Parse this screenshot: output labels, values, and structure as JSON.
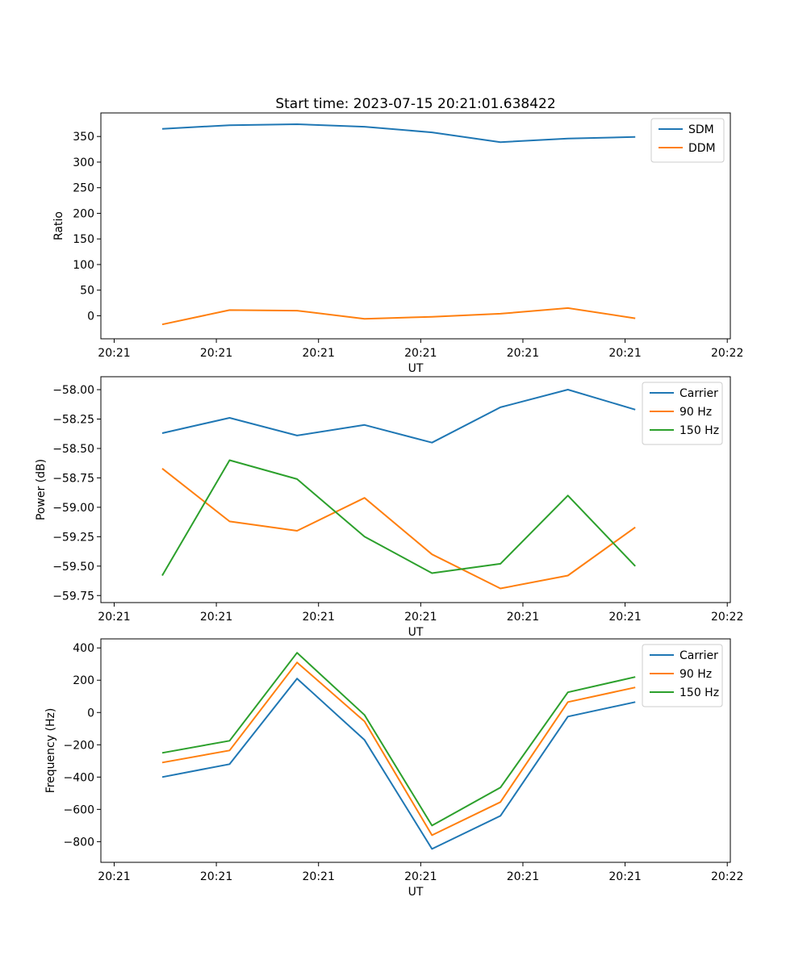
{
  "figure": {
    "title": "Start time: 2023-07-15 20:21:01.638422"
  },
  "chart_data": [
    {
      "type": "line",
      "title": "Start time: 2023-07-15 20:21:01.638422",
      "xlabel": "UT",
      "ylabel": "Ratio",
      "x_seconds": [
        4.7,
        11.3,
        17.9,
        24.5,
        31.1,
        37.8,
        44.4,
        51.0
      ],
      "series": [
        {
          "name": "SDM",
          "color": "#1f77b4",
          "values": [
            365,
            372,
            374,
            369,
            358,
            339,
            346,
            349
          ]
        },
        {
          "name": "DDM",
          "color": "#ff7f0e",
          "values": [
            -17,
            11,
            10,
            -6,
            -2,
            4,
            15,
            -5
          ]
        }
      ],
      "xlim": [
        -1.3,
        60.3
      ],
      "ylim": [
        -45,
        396
      ],
      "yticks": [
        0,
        50,
        100,
        150,
        200,
        250,
        300,
        350
      ],
      "ytick_labels": [
        "0",
        "50",
        "100",
        "150",
        "200",
        "250",
        "300",
        "350"
      ],
      "xticks": [
        0,
        10,
        20,
        30,
        40,
        50,
        60
      ],
      "xtick_labels": [
        "20:21",
        "20:21",
        "20:21",
        "20:21",
        "20:21",
        "20:21",
        "20:22"
      ],
      "legend": [
        "SDM",
        "DDM"
      ],
      "legend_position": "upper right",
      "grid": false
    },
    {
      "type": "line",
      "title": "",
      "xlabel": "UT",
      "ylabel": "Power (dB)",
      "x_seconds": [
        4.7,
        11.3,
        17.9,
        24.5,
        31.1,
        37.8,
        44.4,
        51.0
      ],
      "series": [
        {
          "name": "Carrier",
          "color": "#1f77b4",
          "values": [
            -58.37,
            -58.24,
            -58.39,
            -58.3,
            -58.45,
            -58.15,
            -58.0,
            -58.17
          ]
        },
        {
          "name": "90 Hz",
          "color": "#ff7f0e",
          "values": [
            -58.67,
            -59.12,
            -59.2,
            -58.92,
            -59.4,
            -59.69,
            -59.58,
            -59.17
          ]
        },
        {
          "name": "150 Hz",
          "color": "#2ca02c",
          "values": [
            -59.58,
            -58.6,
            -58.76,
            -59.25,
            -59.56,
            -59.48,
            -58.9,
            -59.5
          ]
        }
      ],
      "xlim": [
        -1.3,
        60.3
      ],
      "ylim": [
        -59.81,
        -57.89
      ],
      "yticks": [
        -59.75,
        -59.5,
        -59.25,
        -59.0,
        -58.75,
        -58.5,
        -58.25,
        -58.0
      ],
      "ytick_labels": [
        "−59.75",
        "−59.50",
        "−59.25",
        "−59.00",
        "−58.75",
        "−58.50",
        "−58.25",
        "−58.00"
      ],
      "xticks": [
        0,
        10,
        20,
        30,
        40,
        50,
        60
      ],
      "xtick_labels": [
        "20:21",
        "20:21",
        "20:21",
        "20:21",
        "20:21",
        "20:21",
        "20:22"
      ],
      "legend": [
        "Carrier",
        "90 Hz",
        "150 Hz"
      ],
      "legend_position": "upper right",
      "grid": false
    },
    {
      "type": "line",
      "title": "",
      "xlabel": "UT",
      "ylabel": "Frequency (Hz)",
      "x_seconds": [
        4.7,
        11.3,
        17.9,
        24.5,
        31.1,
        37.8,
        44.4,
        51.0
      ],
      "series": [
        {
          "name": "Carrier",
          "color": "#1f77b4",
          "values": [
            -400,
            -320,
            210,
            -170,
            -845,
            -640,
            -25,
            65
          ]
        },
        {
          "name": "90 Hz",
          "color": "#ff7f0e",
          "values": [
            -310,
            -235,
            310,
            -55,
            -760,
            -555,
            65,
            155
          ]
        },
        {
          "name": "150 Hz",
          "color": "#2ca02c",
          "values": [
            -250,
            -175,
            370,
            -15,
            -700,
            -465,
            125,
            220
          ]
        }
      ],
      "xlim": [
        -1.3,
        60.3
      ],
      "ylim": [
        -928,
        456
      ],
      "yticks": [
        -800,
        -600,
        -400,
        -200,
        0,
        200,
        400
      ],
      "ytick_labels": [
        "−800",
        "−600",
        "−400",
        "−200",
        "0",
        "200",
        "400"
      ],
      "xticks": [
        0,
        10,
        20,
        30,
        40,
        50,
        60
      ],
      "xtick_labels": [
        "20:21",
        "20:21",
        "20:21",
        "20:21",
        "20:21",
        "20:21",
        "20:22"
      ],
      "legend": [
        "Carrier",
        "90 Hz",
        "150 Hz"
      ],
      "legend_position": "upper right",
      "grid": false
    }
  ]
}
